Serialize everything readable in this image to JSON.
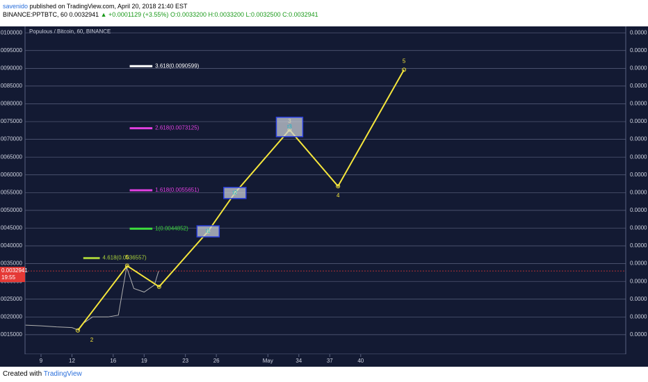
{
  "header": {
    "author": "savenido",
    "published": " published on TradingView.com, April 20, 2018 21:40 EST",
    "symbol": "BINANCE:PPTBTC, 60",
    "price": "0.0032941",
    "change": "▲ +0.0001129 (+3.55%)",
    "ohlc": "O:0.0033200 H:0.0033200 L:0.0032500 C:0.0032941"
  },
  "footer": {
    "created": "Created with",
    "brand": "TradingView"
  },
  "chart_data": {
    "type": "line",
    "title": "Populous / Bitcoin, 60, BINANCE",
    "xlim": [
      7.45,
      65.7
    ],
    "xticks": [
      9,
      12,
      16,
      19,
      23,
      26,
      {
        "value": 31,
        "label": "May"
      },
      34,
      37,
      40
    ],
    "ylim": [
      0.00095,
      0.01018
    ],
    "yticks": [
      {
        "value": 0.0015,
        "label": "0.0015000"
      },
      {
        "value": 0.002,
        "label": "0.0020000"
      },
      {
        "value": 0.0025,
        "label": "0.0025000"
      },
      {
        "value": 0.003,
        "label": "0.0030000"
      },
      {
        "value": 0.0035,
        "label": "0.0035000"
      },
      {
        "value": 0.004,
        "label": "0.0040000"
      },
      {
        "value": 0.0045,
        "label": "0.0045000"
      },
      {
        "value": 0.005,
        "label": "0.0050000"
      },
      {
        "value": 0.0055,
        "label": "0.0055000"
      },
      {
        "value": 0.006,
        "label": "0.0060000"
      },
      {
        "value": 0.0065,
        "label": "0.0065000"
      },
      {
        "value": 0.007,
        "label": "0.0070000"
      },
      {
        "value": 0.0075,
        "label": "0.0075000"
      },
      {
        "value": 0.008,
        "label": "0.0080000"
      },
      {
        "value": 0.0085,
        "label": "0.0085000"
      },
      {
        "value": 0.009,
        "label": "0.0090000"
      },
      {
        "value": 0.0095,
        "label": "0.0095000"
      },
      {
        "value": 0.01,
        "label": "0.0100000"
      }
    ],
    "right_axis_labels": [
      "0.0000",
      "0.0000",
      "0.0000",
      "0.0000",
      "0.0000",
      "0.0000",
      "0.0000",
      "0.0000",
      "0.0000",
      "0.0000",
      "0.0000",
      "0.0000",
      "0.0000",
      "0.0000",
      "0.0000",
      "0.0000",
      "0.0000",
      "0.0000"
    ],
    "grid": true,
    "series": [
      {
        "name": "PPTBTC",
        "color": "#b0b0b0",
        "x": [
          7.5,
          9,
          10.5,
          12,
          12.6,
          13,
          14,
          15.5,
          16.5,
          17.3,
          18,
          19,
          20,
          20.4
        ],
        "values": [
          0.00177,
          0.00175,
          0.00172,
          0.0017,
          0.00163,
          0.0018,
          0.002,
          0.002,
          0.00205,
          0.0034,
          0.0028,
          0.0027,
          0.0029,
          0.00329
        ]
      },
      {
        "name": "Wave projection",
        "color": "#f5e63c",
        "x": [
          12.57,
          17.35,
          20.45,
          25.2,
          27.8,
          33.1,
          37.8,
          44.2
        ],
        "values": [
          0.00162,
          0.00344,
          0.00285,
          0.00441,
          0.00549,
          0.00727,
          0.00568,
          0.00896
        ],
        "point_labels": [
          "2",
          "5",
          null,
          null,
          null,
          "3",
          "4",
          "5"
        ]
      }
    ],
    "boxes": [
      {
        "label": "t1",
        "point": 3
      },
      {
        "label": "t2",
        "point": 4
      },
      {
        "label": "t3",
        "point": 5
      }
    ],
    "levels": [
      {
        "label": "3.618(0.0090599)",
        "value": 0.0090599,
        "color": "#ffffff",
        "x": [
          17.6,
          19.8
        ]
      },
      {
        "label": "2.618(0.0073125)",
        "value": 0.0073125,
        "color": "#e040e0",
        "x": [
          17.6,
          19.8
        ]
      },
      {
        "label": "1.618(0.0055651)",
        "value": 0.0055651,
        "color": "#e040e0",
        "x": [
          17.6,
          19.8
        ]
      },
      {
        "label": "1(0.0044852)",
        "value": 0.0044852,
        "color": "#3ddc3d",
        "x": [
          17.6,
          19.8
        ]
      },
      {
        "label": "4.618(0.0036557)",
        "value": 0.0036557,
        "color": "#a8d03a",
        "x": [
          13.1,
          14.7
        ]
      }
    ],
    "last_price": {
      "value": 0.0032941,
      "label": "0.0032941",
      "time": "19:55",
      "color": "#e53935"
    }
  }
}
